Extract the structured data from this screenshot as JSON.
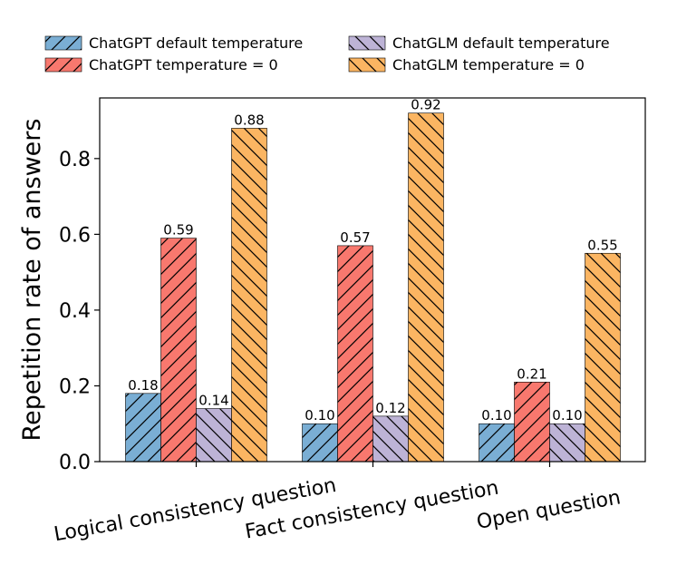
{
  "chart_data": {
    "type": "bar",
    "title": "",
    "xlabel": "",
    "ylabel": "Repetition rate of answers",
    "ylim": [
      0,
      0.96
    ],
    "yticks": [
      0.0,
      0.2,
      0.4,
      0.6,
      0.8
    ],
    "ytick_labels": [
      "0.0",
      "0.2",
      "0.4",
      "0.6",
      "0.8"
    ],
    "grid": false,
    "legend_position": "top",
    "categories": [
      "Logical consistency question",
      "Fact consistency question",
      "Open question"
    ],
    "series": [
      {
        "name": "ChatGPT default temperature",
        "values": [
          0.18,
          0.1,
          0.1
        ],
        "labels": [
          "0.18",
          "0.10",
          "0.10"
        ],
        "color": "#7aaed4",
        "hatch": "forward"
      },
      {
        "name": "ChatGPT temperature = 0",
        "values": [
          0.59,
          0.57,
          0.21
        ],
        "labels": [
          "0.59",
          "0.57",
          "0.21"
        ],
        "color": "#f8786e",
        "hatch": "forward"
      },
      {
        "name": "ChatGLM default temperature",
        "values": [
          0.14,
          0.12,
          0.1
        ],
        "labels": [
          "0.14",
          "0.12",
          "0.10"
        ],
        "color": "#bdb3d6",
        "hatch": "backward"
      },
      {
        "name": "ChatGLM temperature = 0",
        "values": [
          0.88,
          0.92,
          0.55
        ],
        "labels": [
          "0.88",
          "0.92",
          "0.55"
        ],
        "color": "#fbb562",
        "hatch": "backward"
      }
    ]
  }
}
